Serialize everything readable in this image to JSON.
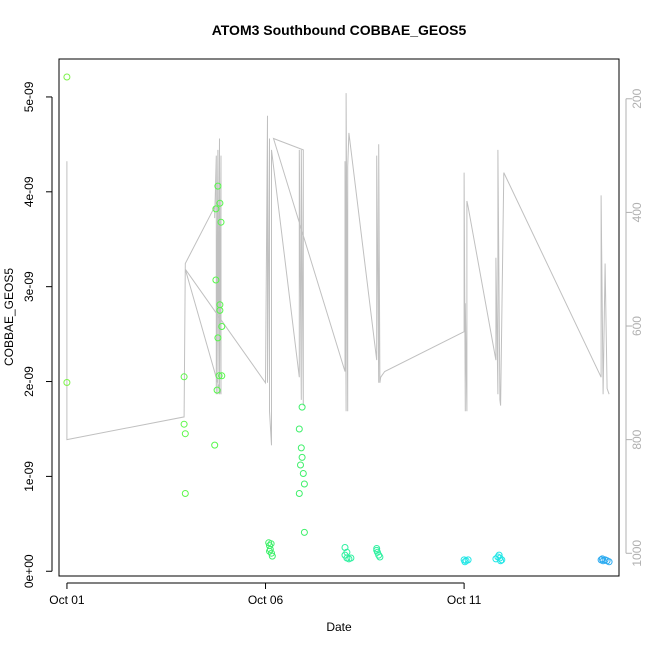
{
  "chart_data": {
    "type": "scatter",
    "title": "ATOM3 Southbound COBBAE_GEOS5",
    "xlabel": "Date",
    "ylabel": "COBBAE_GEOS5",
    "x_ticks": [
      {
        "label": "Oct 01",
        "day": 1
      },
      {
        "label": "Oct 06",
        "day": 6
      },
      {
        "label": "Oct 11",
        "day": 11
      }
    ],
    "y_ticks": [
      {
        "label": "0e+00",
        "value": 0
      },
      {
        "label": "1e-09",
        "value": 1e-09
      },
      {
        "label": "2e-09",
        "value": 2e-09
      },
      {
        "label": "3e-09",
        "value": 3e-09
      },
      {
        "label": "4e-09",
        "value": 4e-09
      },
      {
        "label": "5e-09",
        "value": 5e-09
      }
    ],
    "y2_ticks": [
      {
        "label": "200",
        "value": 200
      },
      {
        "label": "400",
        "value": 400
      },
      {
        "label": "600",
        "value": 600
      },
      {
        "label": "800",
        "value": 800
      },
      {
        "label": "1000",
        "value": 1000
      }
    ],
    "xlim": [
      0.8,
      14.9
    ],
    "ylim": [
      -5e-11,
      5.4e-09
    ],
    "y2lim": [
      1040,
      130
    ],
    "y2_inverted": true,
    "colors": {
      "pressure_line": "#c0c0c0",
      "axis": "#000000",
      "y2_axis": "#b0b0b0"
    },
    "series": [
      {
        "points": [
          [
            1.0,
            5.21e-09,
            "#7df24a"
          ],
          [
            1.0,
            1.99e-09,
            "#7df24a"
          ],
          [
            3.95,
            2.05e-09,
            "#5ef74a"
          ],
          [
            3.95,
            1.55e-09,
            "#5ef74a"
          ],
          [
            3.98,
            1.45e-09,
            "#5ef74a"
          ],
          [
            3.98,
            8.2e-10,
            "#5ef74a"
          ],
          [
            4.72,
            1.33e-09,
            "#55f74a"
          ],
          [
            4.75,
            3.82e-09,
            "#55f74a"
          ],
          [
            4.75,
            3.07e-09,
            "#55f74a"
          ],
          [
            4.8,
            4.06e-09,
            "#55f74a"
          ],
          [
            4.8,
            2.46e-09,
            "#55f74a"
          ],
          [
            4.78,
            1.91e-09,
            "#55f74a"
          ],
          [
            4.85,
            3.88e-09,
            "#55f74a"
          ],
          [
            4.85,
            2.81e-09,
            "#55f74a"
          ],
          [
            4.85,
            2.75e-09,
            "#55f74a"
          ],
          [
            4.83,
            2.06e-09,
            "#55f74a"
          ],
          [
            4.88,
            3.68e-09,
            "#55f74a"
          ],
          [
            4.9,
            2.58e-09,
            "#55f74a"
          ],
          [
            4.9,
            2.06e-09,
            "#55f74a"
          ],
          [
            6.08,
            3e-10,
            "#3ef06a"
          ],
          [
            6.1,
            2.7e-10,
            "#3ef06a"
          ],
          [
            6.12,
            2.3e-10,
            "#3ef06a"
          ],
          [
            6.15,
            1.9e-10,
            "#3ef06a"
          ],
          [
            6.17,
            1.6e-10,
            "#3ef06a"
          ],
          [
            6.1,
            2.1e-10,
            "#3ef06a"
          ],
          [
            6.14,
            2.9e-10,
            "#3ef06a"
          ],
          [
            6.85,
            8.2e-10,
            "#3ef06a"
          ],
          [
            6.85,
            1.5e-09,
            "#3ef06a"
          ],
          [
            6.88,
            1.12e-09,
            "#3ef06a"
          ],
          [
            6.9,
            1.3e-09,
            "#3ef06a"
          ],
          [
            6.92,
            1.73e-09,
            "#3ef06a"
          ],
          [
            6.92,
            1.2e-09,
            "#3ef06a"
          ],
          [
            6.95,
            1.03e-09,
            "#3ef06a"
          ],
          [
            6.98,
            9.2e-10,
            "#3ef06a"
          ],
          [
            6.98,
            4.1e-10,
            "#3ef06a"
          ],
          [
            8.0,
            2.5e-10,
            "#2ef0a0"
          ],
          [
            8.0,
            1.7e-10,
            "#2ef0a0"
          ],
          [
            8.05,
            2e-10,
            "#2ef0a0"
          ],
          [
            8.05,
            1.4e-10,
            "#2ef0a0"
          ],
          [
            8.1,
            1.3e-10,
            "#2ef0a0"
          ],
          [
            8.15,
            1.4e-10,
            "#2ef0a0"
          ],
          [
            8.8,
            2.4e-10,
            "#2ef0a0"
          ],
          [
            8.82,
            2e-10,
            "#2ef0a0"
          ],
          [
            8.85,
            1.7e-10,
            "#2ef0a0"
          ],
          [
            8.88,
            1.5e-10,
            "#2ef0a0"
          ],
          [
            8.8,
            2.2e-10,
            "#2ef0a0"
          ],
          [
            11.0,
            1.2e-10,
            "#22e6e6"
          ],
          [
            11.05,
            1.1e-10,
            "#22e6e6"
          ],
          [
            11.1,
            1.2e-10,
            "#22e6e6"
          ],
          [
            11.02,
            1e-10,
            "#22e6e6"
          ],
          [
            11.8,
            1.3e-10,
            "#22e6e6"
          ],
          [
            11.85,
            1.5e-10,
            "#22e6e6"
          ],
          [
            11.9,
            1.4e-10,
            "#22e6e6"
          ],
          [
            11.92,
            1.1e-10,
            "#22e6e6"
          ],
          [
            11.88,
            1.7e-10,
            "#22e6e6"
          ],
          [
            11.95,
            1.2e-10,
            "#22e6e6"
          ],
          [
            14.45,
            1.2e-10,
            "#2aaaf0"
          ],
          [
            14.5,
            1.1e-10,
            "#2aaaf0"
          ],
          [
            14.55,
            1.2e-10,
            "#2aaaf0"
          ],
          [
            14.6,
            1.1e-10,
            "#2aaaf0"
          ],
          [
            14.65,
            1e-10,
            "#2aaaf0"
          ],
          [
            14.48,
            1.3e-10,
            "#2aaaf0"
          ]
        ]
      }
    ],
    "pressure_line": [
      [
        1.0,
        310
      ],
      [
        1.0,
        800
      ],
      [
        3.95,
        760
      ],
      [
        3.98,
        490
      ],
      [
        4.72,
        390
      ],
      [
        4.72,
        410
      ],
      [
        4.76,
        300
      ],
      [
        4.76,
        720
      ],
      [
        4.8,
        290
      ],
      [
        4.8,
        720
      ],
      [
        4.84,
        270
      ],
      [
        4.84,
        720
      ],
      [
        4.88,
        300
      ],
      [
        4.88,
        720
      ],
      [
        3.98,
        500
      ],
      [
        6.0,
        700
      ],
      [
        6.05,
        230
      ],
      [
        6.05,
        700
      ],
      [
        6.1,
        270
      ],
      [
        6.1,
        750
      ],
      [
        6.15,
        810
      ],
      [
        6.15,
        290
      ],
      [
        6.85,
        690
      ],
      [
        6.85,
        290
      ],
      [
        6.9,
        730
      ],
      [
        6.9,
        290
      ],
      [
        6.95,
        740
      ],
      [
        6.95,
        290
      ],
      [
        6.2,
        270
      ],
      [
        8.0,
        680
      ],
      [
        8.0,
        310
      ],
      [
        8.03,
        750
      ],
      [
        8.03,
        190
      ],
      [
        8.07,
        750
      ],
      [
        8.07,
        320
      ],
      [
        8.1,
        260
      ],
      [
        8.8,
        660
      ],
      [
        8.8,
        300
      ],
      [
        8.85,
        700
      ],
      [
        8.85,
        280
      ],
      [
        8.88,
        700
      ],
      [
        8.9,
        690
      ],
      [
        9.0,
        680
      ],
      [
        11.0,
        610
      ],
      [
        11.0,
        330
      ],
      [
        11.03,
        750
      ],
      [
        11.03,
        560
      ],
      [
        11.07,
        750
      ],
      [
        11.07,
        380
      ],
      [
        11.1,
        390
      ],
      [
        11.8,
        660
      ],
      [
        11.8,
        480
      ],
      [
        11.85,
        720
      ],
      [
        11.85,
        290
      ],
      [
        11.9,
        730
      ],
      [
        11.92,
        740
      ],
      [
        12.0,
        330
      ],
      [
        14.45,
        690
      ],
      [
        14.45,
        370
      ],
      [
        14.5,
        720
      ],
      [
        14.55,
        490
      ],
      [
        14.6,
        710
      ],
      [
        14.65,
        720
      ]
    ]
  }
}
